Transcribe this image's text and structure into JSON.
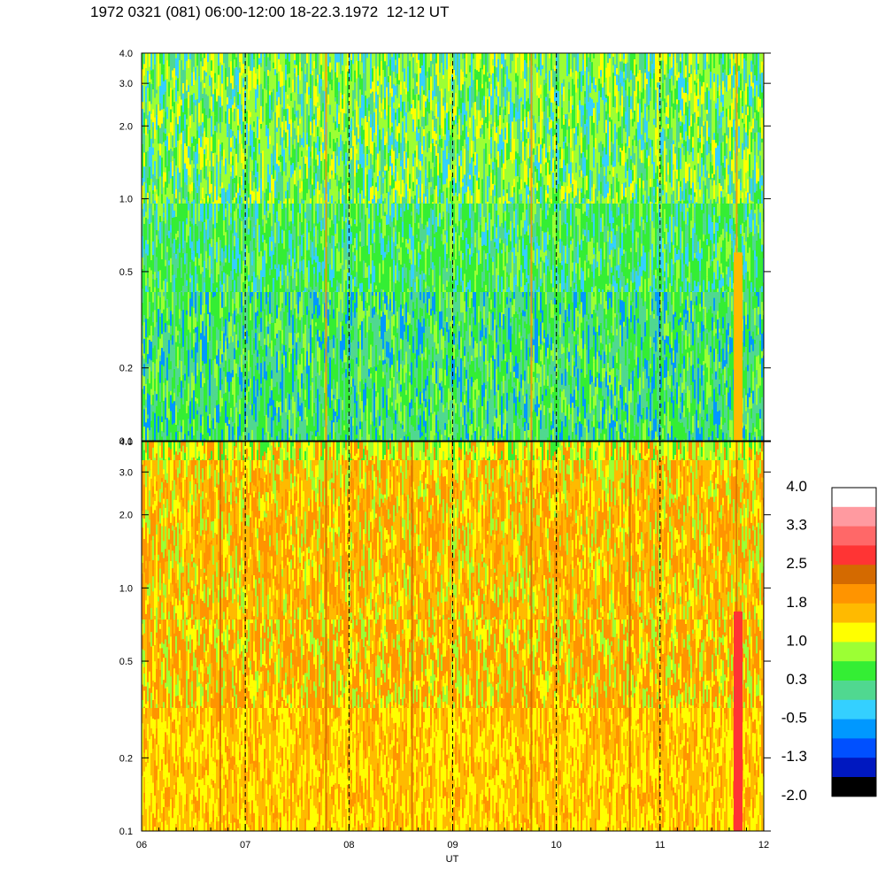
{
  "header": {
    "title": "1972 0321 (081) 06:00-12:00 18-22.3.1972  12-12 UT"
  },
  "chart_data": [
    {
      "type": "heatmap",
      "panel": "top",
      "x_range": [
        "06",
        "12"
      ],
      "y_scale": "log",
      "ylim": [
        0.1,
        4.0
      ],
      "y_tick_labels": [
        "4.0",
        "3.0",
        "2.0",
        "1.0",
        "0.5",
        "0.2",
        "0.1"
      ],
      "y_tick_values": [
        4.0,
        3.0,
        2.0,
        1.0,
        0.5,
        0.2,
        0.1
      ],
      "dominant_levels": [
        {
          "y_from": 0.1,
          "y_to": 0.7,
          "value_range": [
            -0.5,
            0.3
          ]
        },
        {
          "y_from": 0.7,
          "y_to": 4.0,
          "value_range": [
            0.3,
            1.0
          ]
        }
      ],
      "bright_vertical_features_x": [
        7.77,
        9.75,
        11.73
      ]
    },
    {
      "type": "heatmap",
      "panel": "bottom",
      "x_range": [
        "06",
        "12"
      ],
      "x_tick_labels": [
        "06",
        "07",
        "08",
        "09",
        "10",
        "11",
        "12"
      ],
      "xlabel": "UT",
      "y_scale": "log",
      "ylim": [
        0.1,
        4.0
      ],
      "y_tick_labels": [
        "4.0",
        "3.0",
        "2.0",
        "1.0",
        "0.5",
        "0.2",
        "0.1"
      ],
      "y_tick_values": [
        4.0,
        3.0,
        2.0,
        1.0,
        0.5,
        0.2,
        0.1
      ],
      "dominant_levels": [
        {
          "y_from": 0.1,
          "y_to": 0.35,
          "value_range": [
            1.0,
            1.8
          ]
        },
        {
          "y_from": 0.35,
          "y_to": 0.6,
          "value_range": [
            1.8,
            2.5
          ]
        },
        {
          "y_from": 0.6,
          "y_to": 4.0,
          "value_range": [
            1.0,
            2.5
          ]
        }
      ],
      "bright_vertical_features_x": [
        6.75,
        7.77,
        8.6,
        9.75,
        10.7,
        11.73
      ]
    }
  ],
  "dashed_lines_x": [
    7,
    8,
    9,
    10,
    11
  ],
  "colorbar": {
    "labels": [
      "4.0",
      "3.3",
      "2.5",
      "1.8",
      "1.0",
      "0.3",
      "-0.5",
      "-1.3",
      "-2.0"
    ],
    "colors": [
      "#ffffff",
      "#ff9aa0",
      "#ff6868",
      "#ff3434",
      "#d46a00",
      "#ff9400",
      "#ffba00",
      "#ffff00",
      "#9cff34",
      "#34ee34",
      "#50d890",
      "#34d0ff",
      "#0098ff",
      "#0050ff",
      "#0018c0",
      "#000000"
    ]
  }
}
